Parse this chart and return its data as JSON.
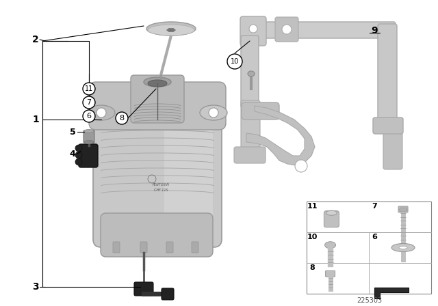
{
  "bg_color": "#ffffff",
  "diagram_number": "225303",
  "gray_light": "#d4d4d4",
  "gray_mid": "#b8b8b8",
  "gray_dark": "#909090",
  "gray_darker": "#707070",
  "black_part": "#2a2a2a",
  "line_color": "#000000",
  "grid_border": "#aaaaaa",
  "figure_width": 6.4,
  "figure_height": 4.48,
  "dpi": 100
}
